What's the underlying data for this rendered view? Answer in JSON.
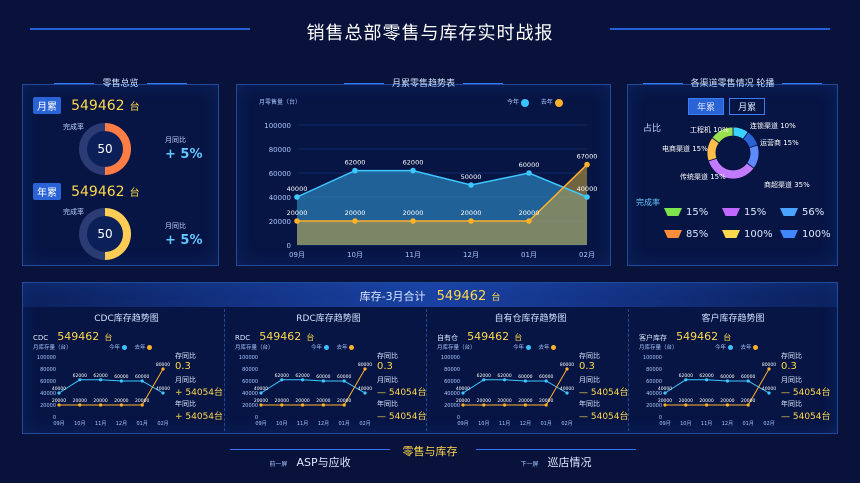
{
  "header": {
    "title": "销售总部零售与库存实时战报"
  },
  "retail_overview": {
    "title": "零售总览",
    "monthly_label": "月累",
    "monthly_value": "549462",
    "monthly_unit": "台",
    "monthly_rate_label": "完成率",
    "monthly_rate": "50",
    "monthly_rate_pct": 50,
    "monthly_compare_label": "月同比",
    "monthly_compare_value": "+ 5%",
    "yearly_label": "年累",
    "yearly_value": "549462",
    "yearly_unit": "台",
    "yearly_rate_label": "完成率",
    "yearly_rate": "50",
    "yearly_rate_pct": 50,
    "yearly_compare_label": "月同比",
    "yearly_compare_value": "+ 5%"
  },
  "trend_chart": {
    "title": "月累零售趋势表",
    "ylabel": "月零售量（台）",
    "legend_this": "今年",
    "legend_last": "去年"
  },
  "chart_data": [
    {
      "type": "area",
      "categories": [
        "09月",
        "10月",
        "11月",
        "12月",
        "01月",
        "02月"
      ],
      "series": [
        {
          "name": "今年",
          "values": [
            40000,
            62000,
            62000,
            50000,
            60000,
            40000
          ]
        },
        {
          "name": "去年",
          "values": [
            20000,
            20000,
            20000,
            20000,
            20000,
            67000
          ]
        }
      ],
      "ylim": [
        0,
        100000
      ],
      "yticks": [
        "0",
        "20000",
        "40000",
        "60000",
        "80000",
        "100000"
      ],
      "data_labels": {
        "this_year": [
          "40000",
          "62000",
          "62000",
          "50000",
          "60000",
          "40000"
        ],
        "last_year": [
          "20000",
          "20000",
          "20000",
          "20000",
          "20000",
          "67000"
        ]
      }
    },
    {
      "type": "pie",
      "title": "占比",
      "labels": [
        "工程机",
        "连锁渠道",
        "运营商",
        "商超渠道",
        "传统渠道",
        "电商渠道"
      ],
      "values": [
        10,
        10,
        15,
        35,
        15,
        15
      ],
      "display": [
        "工程机 10%",
        "连锁渠道 10%",
        "运营商 15%",
        "商超渠道 35%",
        "传统渠道 15%",
        "电商渠道 15%"
      ],
      "colors": [
        "#3ad3ff",
        "#2a63d6",
        "#5f89ff",
        "#c27bff",
        "#ffbe49",
        "#9be14e"
      ]
    }
  ],
  "channels": {
    "title": "各渠道零售情况 轮播",
    "tab_year": "年累",
    "tab_month": "月累",
    "share_label": "占比",
    "completion_label": "完成率",
    "completion_rates": [
      {
        "value": "15%",
        "color": "#7fe34d",
        "icon": "completion-bar-icon"
      },
      {
        "value": "15%",
        "color": "#c267ff",
        "icon": "completion-bar-icon"
      },
      {
        "value": "56%",
        "color": "#4aa4ff",
        "icon": "completion-bar-icon"
      },
      {
        "value": "85%",
        "color": "#ff8d3a",
        "icon": "completion-bar-icon"
      },
      {
        "value": "100%",
        "color": "#ffd84c",
        "icon": "completion-bar-icon"
      },
      {
        "value": "100%",
        "color": "#3f86ff",
        "icon": "completion-bar-icon"
      }
    ]
  },
  "inventory": {
    "header_label": "库存-3月合计",
    "header_value": "549462",
    "header_unit": "台",
    "panels": [
      {
        "title": "CDC库存趋势图",
        "tag": "CDC",
        "value": "549462",
        "unit": "台",
        "y_label": "月库存量（台）",
        "compare_label": "存同比",
        "compare_value": "0.3",
        "mom_label": "月同比",
        "mom_value": "+ 54054台",
        "yoy_label": "年同比",
        "yoy_value": "+ 54054台"
      },
      {
        "title": "RDC库存趋势图",
        "tag": "RDC",
        "value": "549462",
        "unit": "台",
        "y_label": "月库存量（台）",
        "compare_label": "存同比",
        "compare_value": "0.3",
        "mom_label": "月同比",
        "mom_value": "— 54054台",
        "yoy_label": "年同比",
        "yoy_value": "— 54054台"
      },
      {
        "title": "自有仓库存趋势图",
        "tag": "自有仓",
        "value": "549462",
        "unit": "台",
        "y_label": "月库存量（台）",
        "compare_label": "存同比",
        "compare_value": "0.3",
        "mom_label": "月同比",
        "mom_value": "— 54054台",
        "yoy_label": "年同比",
        "yoy_value": "— 54054台"
      },
      {
        "title": "客户库存趋势图",
        "tag": "客户库存",
        "value": "549462",
        "unit": "台",
        "y_label": "月库存量（台）",
        "compare_label": "存同比",
        "compare_value": "0.3",
        "mom_label": "月同比",
        "mom_value": "— 54054台",
        "yoy_label": "年同比",
        "yoy_value": "— 54054台"
      }
    ],
    "mini_chart": {
      "legend_this": "今年",
      "legend_last": "去年",
      "categories": [
        "09月",
        "10月",
        "11月",
        "12月",
        "01月",
        "02月"
      ],
      "yticks": [
        "0",
        "20000",
        "40000",
        "60000",
        "80000",
        "100000"
      ],
      "this_year": [
        40000,
        62000,
        62000,
        60000,
        60000,
        40000
      ],
      "last_year": [
        20000,
        20000,
        20000,
        20000,
        20000,
        80000
      ],
      "labels_this": [
        "40000",
        "62000",
        "62000",
        "60000",
        "60000",
        "40000"
      ],
      "labels_last": [
        "20000",
        "20000",
        "20000",
        "20000",
        "20000",
        "80000"
      ]
    }
  },
  "footer": {
    "center": "零售与库存",
    "prev_label": "前一屏",
    "prev_value": "ASP与应收",
    "next_label": "下一屏",
    "next_value": "巡店情况"
  }
}
